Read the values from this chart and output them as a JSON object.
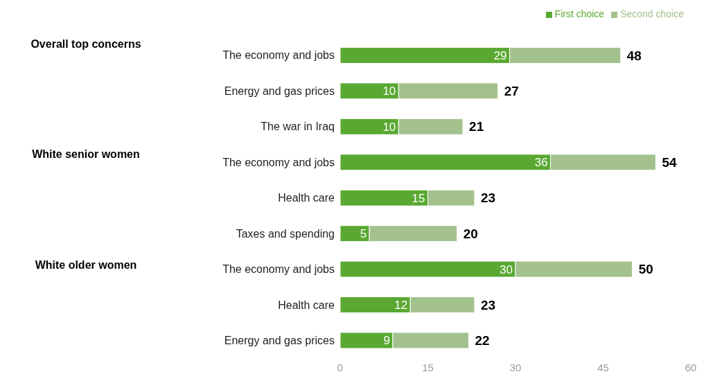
{
  "chart_data": {
    "type": "bar",
    "orientation": "horizontal",
    "stacked": true,
    "categories": [
      "The economy and jobs",
      "Energy and gas prices",
      "The war in Iraq",
      "The economy and jobs",
      "Health care",
      "Taxes and spending",
      "The economy and jobs",
      "Health care",
      "Energy and gas prices"
    ],
    "series": [
      {
        "name": "First choice",
        "color": "#5aa832",
        "values": [
          29,
          10,
          10,
          36,
          15,
          5,
          30,
          12,
          9
        ],
        "value_labels": [
          "29",
          "10",
          "10",
          "36",
          "15",
          "5",
          "30",
          "12",
          "9"
        ]
      },
      {
        "name": "Second choice",
        "color": "#a3c18c",
        "values": [
          19,
          17,
          11,
          18,
          8,
          15,
          20,
          11,
          13
        ]
      }
    ],
    "totals": [
      "48",
      "27",
      "21",
      "54",
      "23",
      "20",
      "50",
      "23",
      "22"
    ],
    "xlim": [
      0,
      60
    ],
    "xticks": [
      0,
      15,
      30,
      45,
      60
    ],
    "legend": "top right",
    "annotations": [
      "Overall top concerns",
      "White senior women",
      "White older women"
    ]
  }
}
